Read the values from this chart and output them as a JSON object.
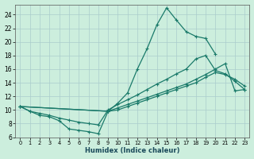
{
  "xlabel": "Humidex (Indice chaleur)",
  "bg_color": "#cceedd",
  "line_color": "#1a7a6a",
  "grid_color": "#aacccc",
  "xlim": [
    -0.5,
    23.5
  ],
  "ylim": [
    6,
    25.5
  ],
  "xticks": [
    0,
    1,
    2,
    3,
    4,
    5,
    6,
    7,
    8,
    9,
    10,
    11,
    12,
    13,
    14,
    15,
    16,
    17,
    18,
    19,
    20,
    21,
    22,
    23
  ],
  "yticks": [
    6,
    8,
    10,
    12,
    14,
    16,
    18,
    20,
    22,
    24
  ],
  "curve1_x": [
    0,
    1,
    2,
    3,
    4,
    5,
    6,
    7,
    8,
    9,
    10,
    11,
    12,
    13,
    14,
    15,
    16,
    17,
    18,
    19,
    20
  ],
  "curve1_y": [
    10.5,
    9.8,
    9.2,
    9.0,
    8.4,
    7.2,
    7.0,
    6.8,
    6.5,
    9.8,
    11.0,
    12.5,
    16.0,
    19.0,
    22.5,
    25.0,
    23.2,
    21.5,
    20.8,
    20.5,
    18.2
  ],
  "curve2_x": [
    0,
    1,
    2,
    3,
    4,
    5,
    6,
    7,
    8,
    9,
    10,
    11,
    12,
    13,
    14,
    15,
    16,
    17,
    18,
    19,
    20,
    21,
    22,
    23
  ],
  "curve2_y": [
    10.5,
    9.8,
    9.5,
    9.2,
    8.8,
    8.5,
    8.2,
    8.0,
    7.8,
    10.0,
    10.8,
    11.5,
    12.2,
    13.0,
    13.8,
    14.5,
    15.3,
    16.0,
    17.5,
    18.0,
    15.8,
    15.3,
    14.2,
    13.0
  ],
  "curve3_x": [
    0,
    9,
    10,
    11,
    12,
    13,
    14,
    15,
    16,
    17,
    18,
    19,
    20,
    21,
    22,
    23
  ],
  "curve3_y": [
    10.5,
    9.8,
    10.3,
    10.8,
    11.3,
    11.8,
    12.3,
    12.8,
    13.3,
    13.8,
    14.5,
    15.2,
    16.0,
    16.8,
    12.8,
    13.0
  ],
  "curve4_x": [
    0,
    9,
    10,
    11,
    12,
    13,
    14,
    15,
    16,
    17,
    18,
    19,
    20,
    21,
    22,
    23
  ],
  "curve4_y": [
    10.5,
    9.8,
    10.0,
    10.5,
    11.0,
    11.5,
    12.0,
    12.5,
    13.0,
    13.5,
    14.0,
    14.8,
    15.5,
    15.2,
    14.5,
    13.5
  ]
}
